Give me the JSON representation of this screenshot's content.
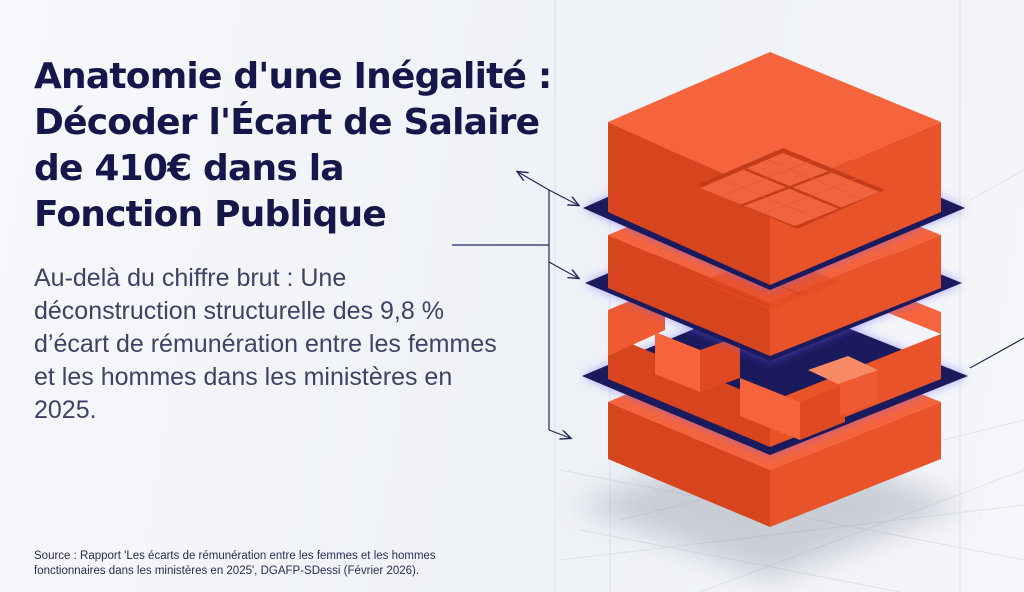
{
  "header": {
    "title_lines": [
      "Anatomie d'une Inégalité :",
      "Décoder l'Écart de Salaire",
      "de 410€ dans la",
      "Fonction Publique"
    ]
  },
  "intro": {
    "text": "Au-delà du chiffre brut : Une déconstruction structurelle des 9,8 % d’écart de rémunération entre les femmes et les hommes dans les ministères en 2025."
  },
  "footer": {
    "source": "Source : Rapport 'Les écarts de rémunération entre les femmes et les hommes fonctionnaires dans les ministères en 2025', DGAFP-SDessi (Février 2026)."
  },
  "illustration": {
    "block_count": 4,
    "colors": {
      "block_top": "#f5643c",
      "block_left": "#d7451f",
      "block_right": "#e9532a",
      "separator": "#1b1a5c",
      "separator_glow": "#6f63ff",
      "title": "#15174a",
      "annotation_line": "#1f2a5a"
    }
  }
}
